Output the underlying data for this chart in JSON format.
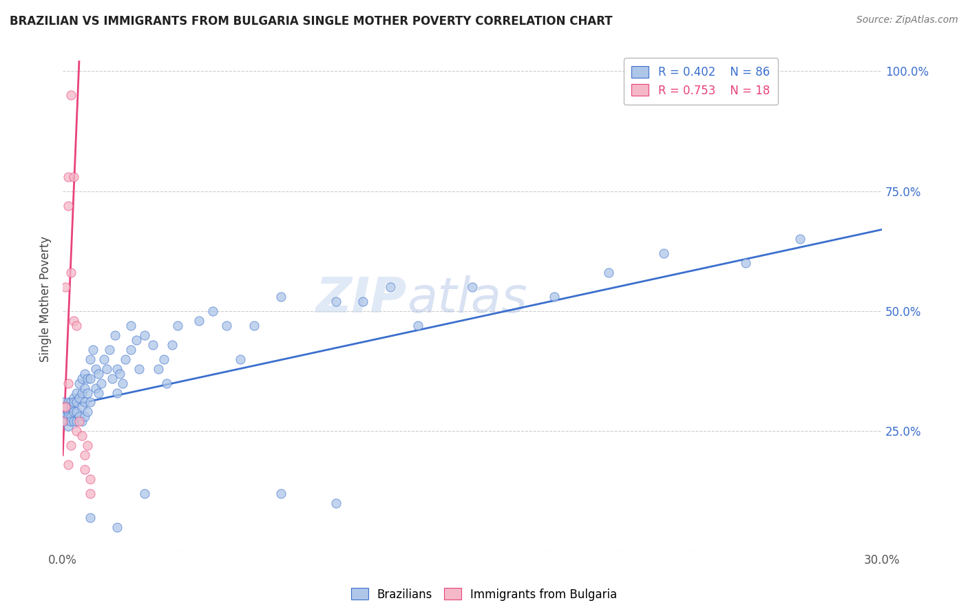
{
  "title": "BRAZILIAN VS IMMIGRANTS FROM BULGARIA SINGLE MOTHER POVERTY CORRELATION CHART",
  "source": "Source: ZipAtlas.com",
  "ylabel": "Single Mother Poverty",
  "watermark": "ZIPatlas",
  "blue_color": "#aec6e8",
  "pink_color": "#f4b8c8",
  "blue_line_color": "#3b6fce",
  "pink_line_color": "#e8427c",
  "blue_scatter": {
    "x": [
      0.0,
      0.0,
      0.0,
      0.0,
      0.0,
      0.001,
      0.001,
      0.001,
      0.001,
      0.002,
      0.002,
      0.002,
      0.002,
      0.002,
      0.003,
      0.003,
      0.003,
      0.003,
      0.004,
      0.004,
      0.004,
      0.004,
      0.005,
      0.005,
      0.005,
      0.005,
      0.006,
      0.006,
      0.006,
      0.007,
      0.007,
      0.007,
      0.007,
      0.008,
      0.008,
      0.008,
      0.008,
      0.009,
      0.009,
      0.009,
      0.01,
      0.01,
      0.01,
      0.011,
      0.012,
      0.012,
      0.013,
      0.013,
      0.014,
      0.015,
      0.016,
      0.017,
      0.018,
      0.019,
      0.02,
      0.02,
      0.021,
      0.022,
      0.023,
      0.025,
      0.025,
      0.027,
      0.028,
      0.03,
      0.033,
      0.035,
      0.037,
      0.038,
      0.04,
      0.042,
      0.05,
      0.055,
      0.06,
      0.065,
      0.07,
      0.08,
      0.1,
      0.11,
      0.12,
      0.13,
      0.15,
      0.18,
      0.2,
      0.22,
      0.25,
      0.27
    ],
    "y": [
      0.3,
      0.29,
      0.28,
      0.27,
      0.31,
      0.3,
      0.29,
      0.28,
      0.27,
      0.31,
      0.3,
      0.29,
      0.28,
      0.26,
      0.31,
      0.3,
      0.28,
      0.27,
      0.32,
      0.31,
      0.29,
      0.27,
      0.33,
      0.31,
      0.29,
      0.27,
      0.35,
      0.32,
      0.28,
      0.36,
      0.33,
      0.3,
      0.27,
      0.37,
      0.34,
      0.31,
      0.28,
      0.36,
      0.33,
      0.29,
      0.4,
      0.36,
      0.31,
      0.42,
      0.38,
      0.34,
      0.37,
      0.33,
      0.35,
      0.4,
      0.38,
      0.42,
      0.36,
      0.45,
      0.38,
      0.33,
      0.37,
      0.35,
      0.4,
      0.47,
      0.42,
      0.44,
      0.38,
      0.45,
      0.43,
      0.38,
      0.4,
      0.35,
      0.43,
      0.47,
      0.48,
      0.5,
      0.47,
      0.4,
      0.47,
      0.53,
      0.52,
      0.52,
      0.55,
      0.47,
      0.55,
      0.53,
      0.58,
      0.62,
      0.6,
      0.65
    ]
  },
  "pink_scatter": {
    "x": [
      0.0,
      0.0,
      0.001,
      0.001,
      0.002,
      0.002,
      0.002,
      0.003,
      0.003,
      0.004,
      0.004,
      0.005,
      0.005,
      0.006,
      0.007,
      0.008,
      0.009,
      0.01
    ],
    "y": [
      0.3,
      0.27,
      0.55,
      0.3,
      0.78,
      0.72,
      0.35,
      0.95,
      0.58,
      0.78,
      0.48,
      0.47,
      0.25,
      0.27,
      0.24,
      0.2,
      0.22,
      0.15
    ]
  },
  "xmin": 0.0,
  "xmax": 0.3,
  "ymin": 0.0,
  "ymax": 1.05,
  "blue_line": {
    "x0": 0.0,
    "x1": 0.3,
    "y0": 0.3,
    "y1": 0.67
  },
  "pink_line": {
    "x0": 0.0,
    "x1": 0.006,
    "y0": 0.2,
    "y1": 1.02
  },
  "blue_low_points": {
    "x": [
      0.01,
      0.02,
      0.03,
      0.08,
      0.1
    ],
    "y": [
      0.07,
      0.05,
      0.12,
      0.12,
      0.1
    ]
  },
  "pink_low_points": {
    "x": [
      0.002,
      0.003,
      0.008,
      0.01
    ],
    "y": [
      0.18,
      0.22,
      0.17,
      0.12
    ]
  },
  "grid_color": "#cccccc",
  "background_color": "#ffffff",
  "ytick_positions": [
    0.0,
    0.25,
    0.5,
    0.75,
    1.0
  ],
  "ytick_labels": [
    "",
    "25.0%",
    "50.0%",
    "75.0%",
    "100.0%"
  ],
  "xtick_positions": [
    0.0,
    0.3
  ],
  "xtick_labels": [
    "0.0%",
    "30.0%"
  ]
}
